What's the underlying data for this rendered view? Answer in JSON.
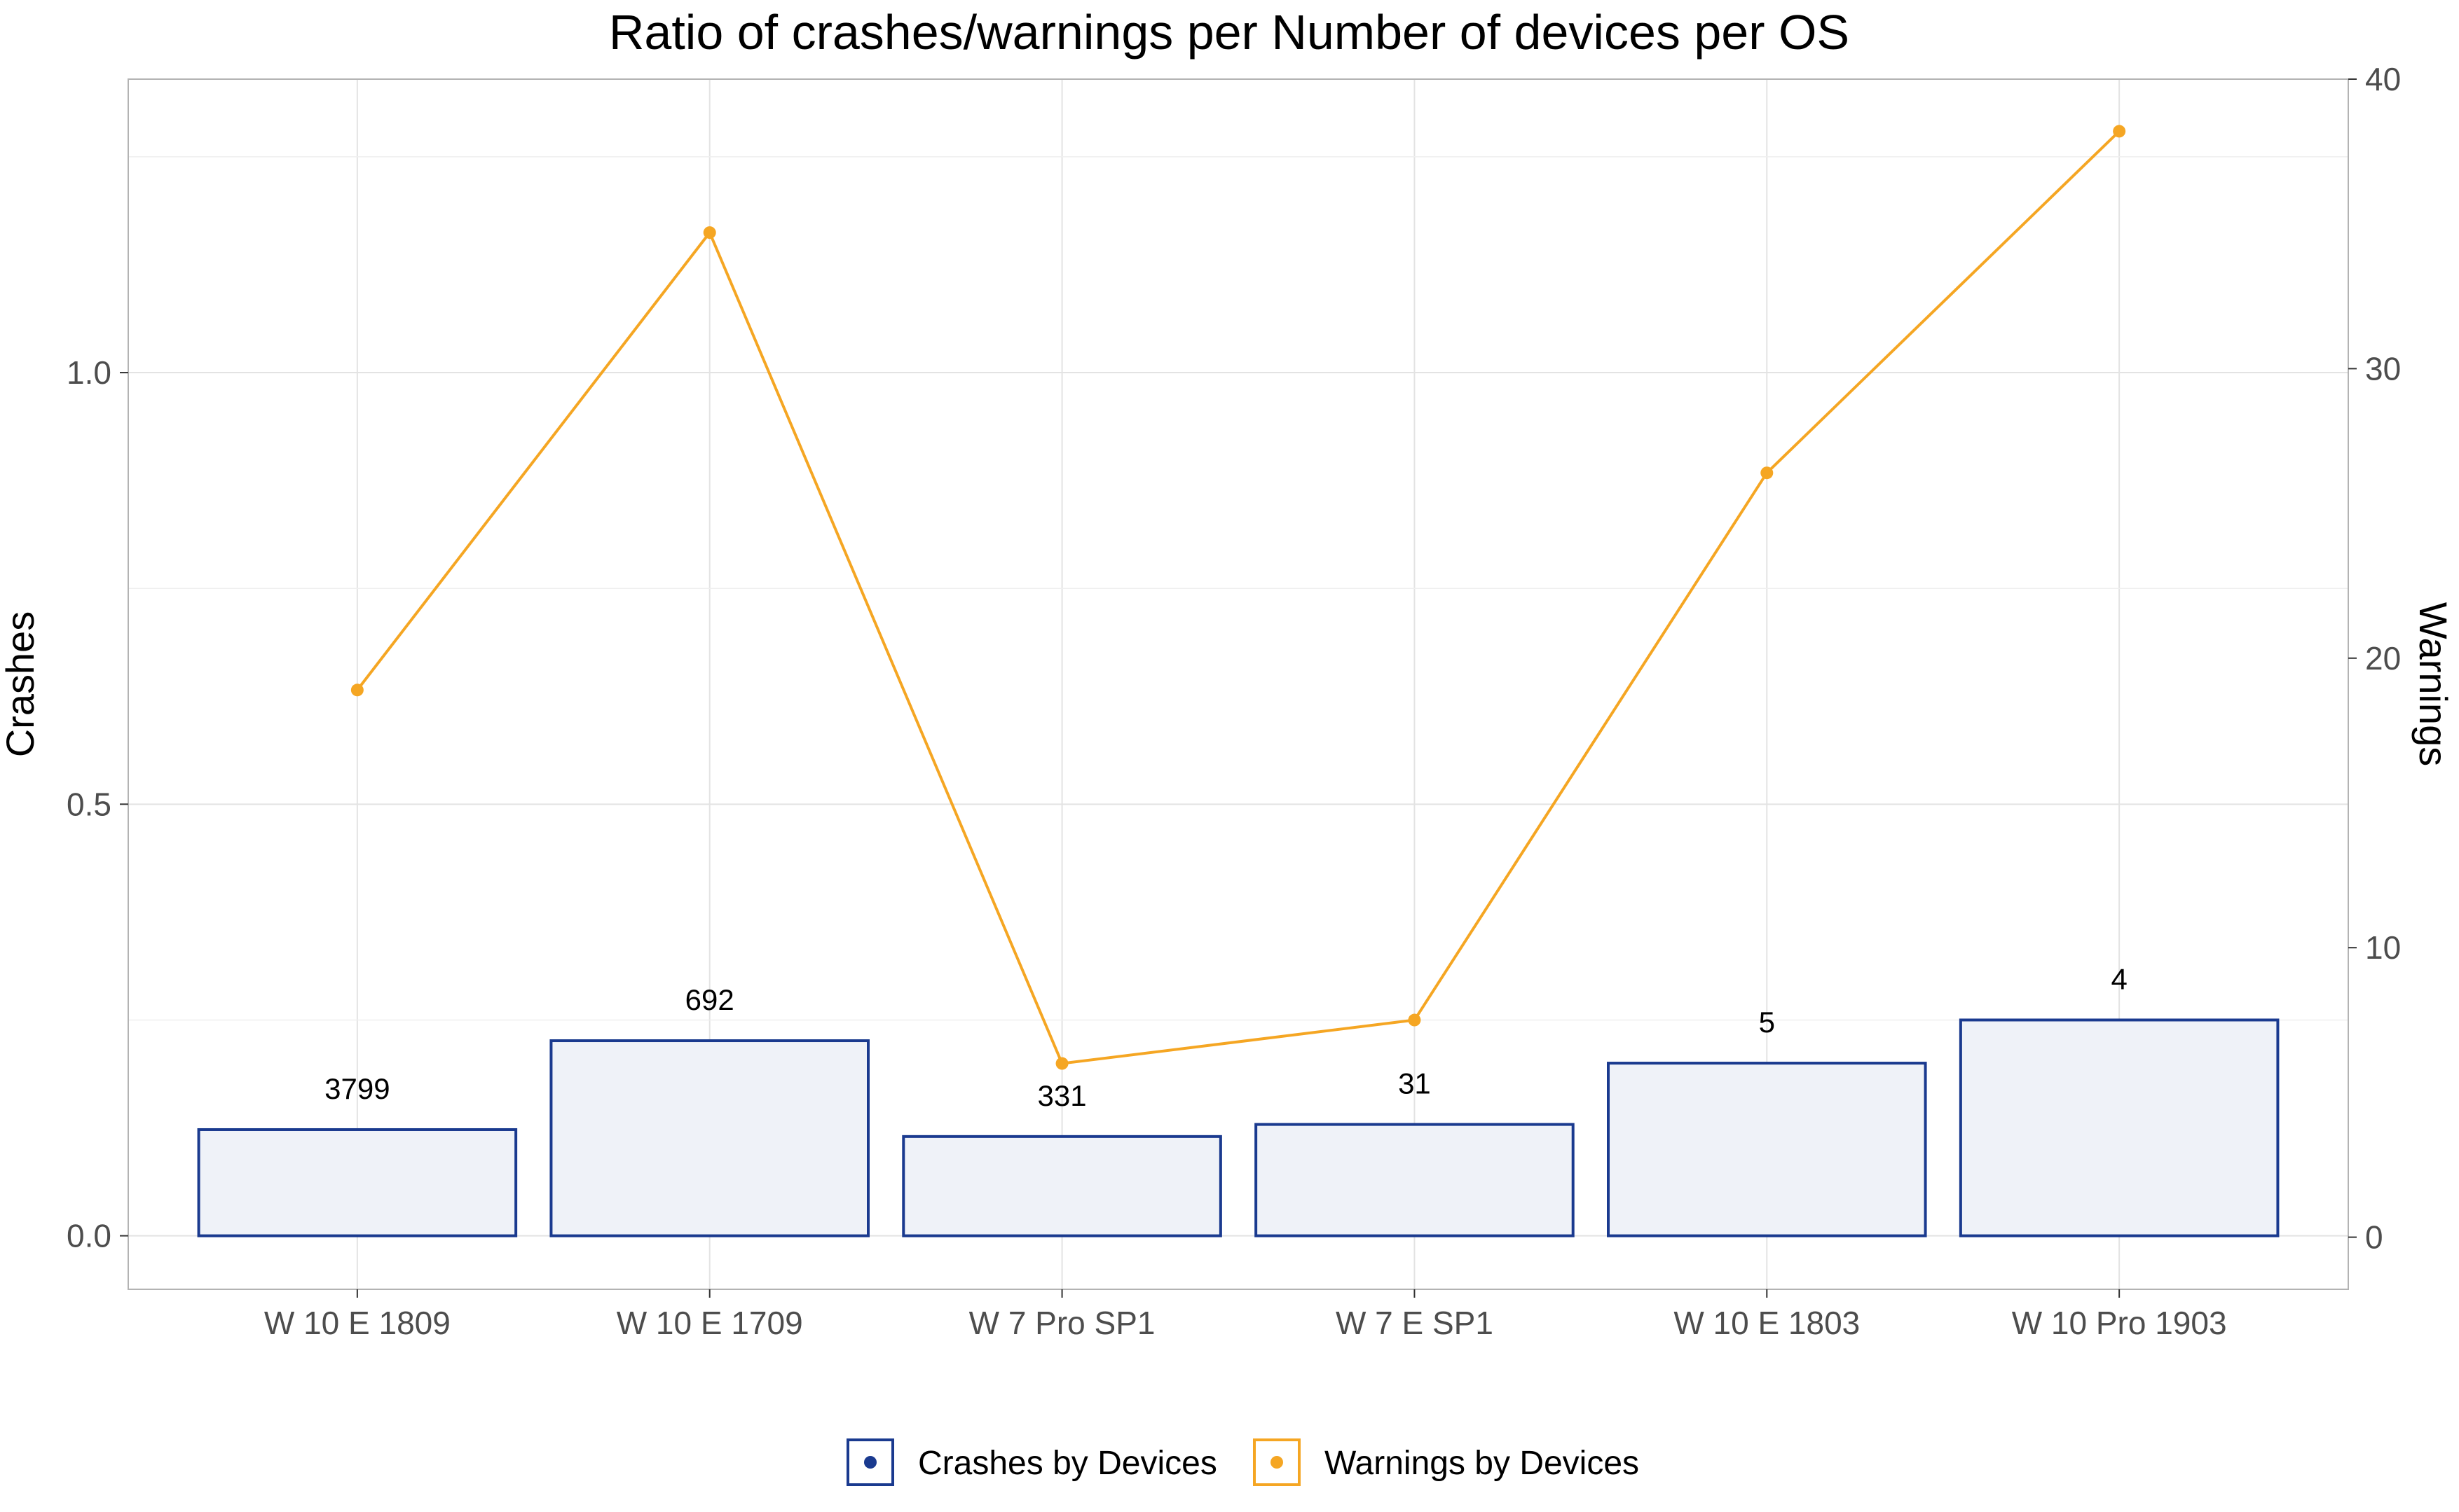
{
  "chart_data": {
    "type": "bar",
    "title": "Ratio of crashes/warnings per Number of devices per OS",
    "xlabel": "",
    "ylabel": "Crashes",
    "y2label": "Warnings",
    "categories": [
      "W 10 E 1809",
      "W 10 E 1709",
      "W 7 Pro SP1",
      "W 7 E SP1",
      "W 10 E 1803",
      "W 10 Pro 1903"
    ],
    "ylim": [
      -0.062,
      1.34
    ],
    "y_ticks": [
      "0.0",
      "0.5",
      "1.0"
    ],
    "y2lim": [
      -1.8,
      40
    ],
    "y2_ticks": [
      "0",
      "10",
      "20",
      "30",
      "40"
    ],
    "series": [
      {
        "name": "Crashes by Devices",
        "type": "bar",
        "axis": "left",
        "values": [
          0.123,
          0.226,
          0.115,
          0.129,
          0.2,
          0.25
        ],
        "data_labels": [
          "3799",
          "692",
          "331",
          "31",
          "5",
          "4"
        ]
      },
      {
        "name": "Warnings by Devices",
        "type": "line",
        "axis": "right",
        "values": [
          18.9,
          34.7,
          6.0,
          7.5,
          26.4,
          38.2
        ]
      }
    ],
    "grid": true,
    "legend_position": "bottom",
    "colors": {
      "bar_border": "#1a3a8f",
      "bar_fill": "#eff2f8",
      "line": "#f5a623",
      "grid": "#e3e3e3",
      "panel_border": "#b3b3b3"
    }
  }
}
